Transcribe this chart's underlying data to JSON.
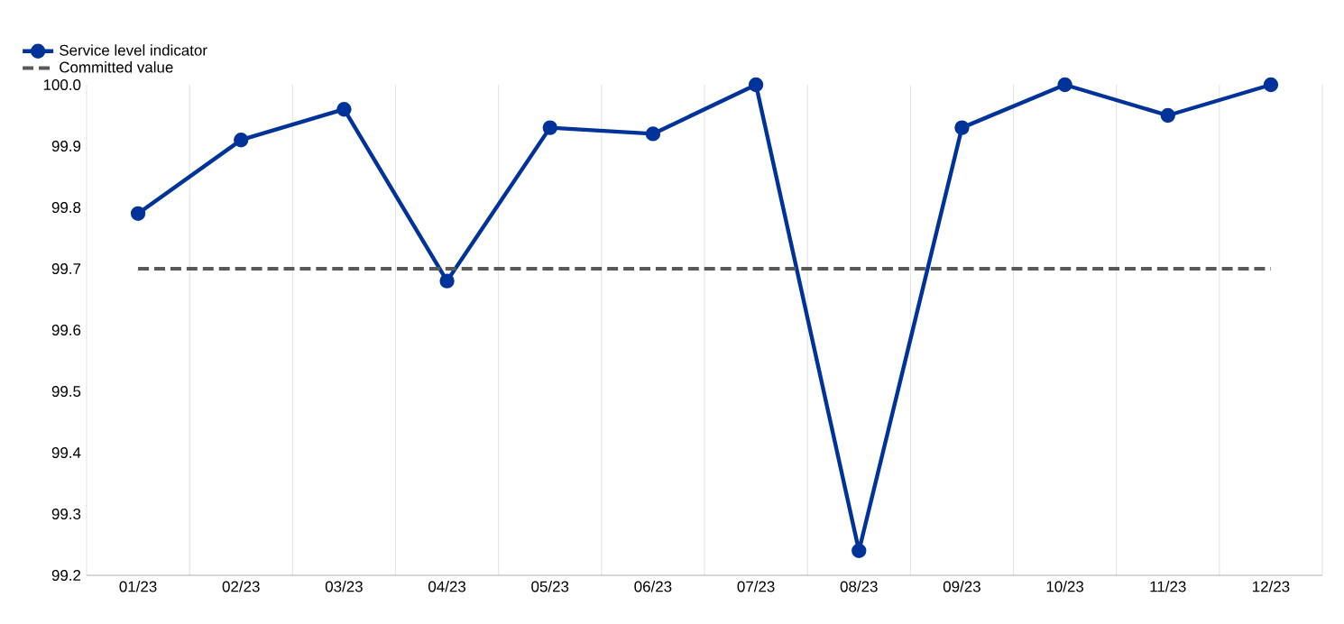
{
  "chart_data": {
    "type": "line",
    "categories": [
      "01/23",
      "02/23",
      "03/23",
      "04/23",
      "05/23",
      "06/23",
      "07/23",
      "08/23",
      "09/23",
      "10/23",
      "11/23",
      "12/23"
    ],
    "series": [
      {
        "name": "Service level indicator",
        "color": "#003399",
        "marker": "circle",
        "line_style": "solid",
        "values": [
          99.79,
          99.91,
          99.96,
          99.68,
          99.93,
          99.92,
          100.0,
          99.24,
          99.93,
          100.0,
          99.95,
          100.0
        ]
      },
      {
        "name": "Committed value",
        "color": "#595959",
        "marker": "none",
        "line_style": "dashed",
        "values": [
          99.7,
          99.7,
          99.7,
          99.7,
          99.7,
          99.7,
          99.7,
          99.7,
          99.7,
          99.7,
          99.7,
          99.7
        ]
      }
    ],
    "ylim": [
      99.2,
      100.0
    ],
    "yticks": [
      99.2,
      99.3,
      99.4,
      99.5,
      99.6,
      99.7,
      99.8,
      99.9,
      {
        "value": 100.0,
        "label": "100.0"
      }
    ],
    "grid": "x",
    "legend": "top left"
  }
}
